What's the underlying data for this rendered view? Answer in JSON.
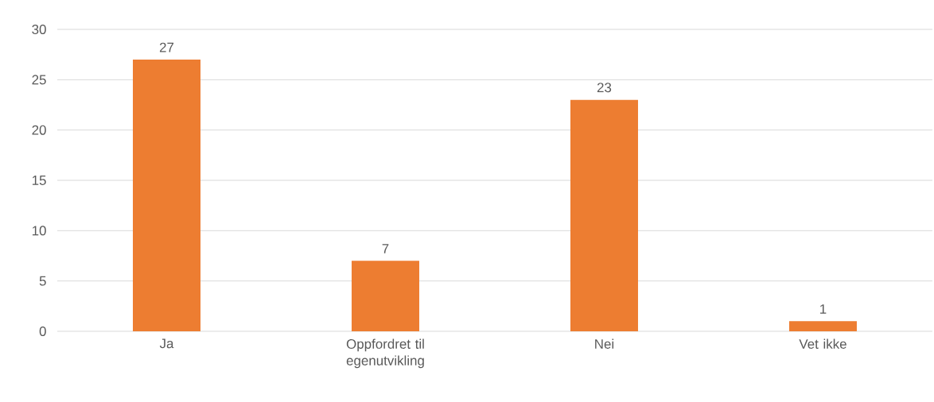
{
  "chart_data": {
    "type": "bar",
    "categories": [
      "Ja",
      "Oppfordret til egenutvikling",
      "Nei",
      "Vet ikke"
    ],
    "values": [
      27,
      7,
      23,
      1
    ],
    "color": "#ed7d31",
    "ylim": [
      0,
      30
    ],
    "yticks": [
      0,
      5,
      10,
      15,
      20,
      25,
      30
    ],
    "grid": "y",
    "data_labels": true
  }
}
